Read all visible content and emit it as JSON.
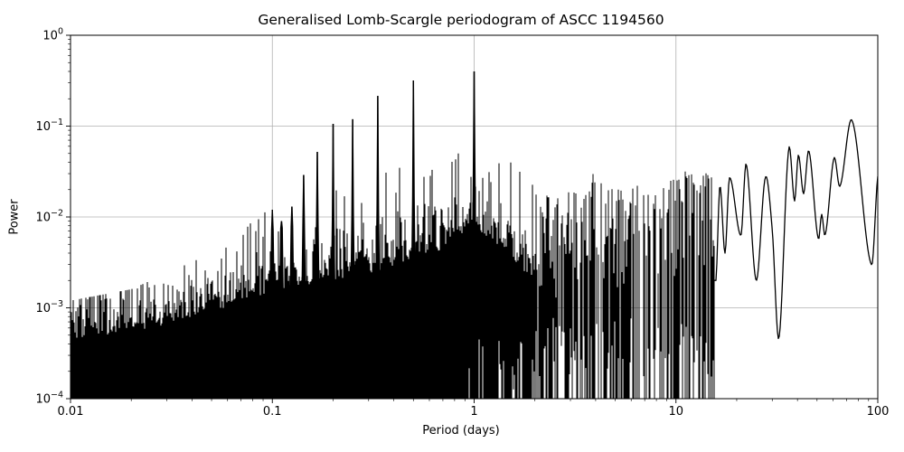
{
  "chart_data": {
    "type": "line",
    "title": "Generalised Lomb-Scargle periodogram of ASCC 1194560",
    "xlabel": "Period (days)",
    "ylabel": "Power",
    "xscale": "log",
    "yscale": "log",
    "xlim": [
      0.01,
      100
    ],
    "ylim": [
      0.0001,
      1
    ],
    "x_tick_labels": [
      "0.01",
      "0.1",
      "1",
      "10",
      "100"
    ],
    "x_tick_values": [
      0.01,
      0.1,
      1,
      10,
      100
    ],
    "y_tick_exponents": [
      0,
      -1,
      -2,
      -3,
      -4
    ],
    "grid": true,
    "legend": "none",
    "line_color": "#000000",
    "grid_color": "#b0b0b0",
    "background": "#ffffff",
    "peaks": [
      {
        "period": 0.1,
        "power": 0.012
      },
      {
        "period": 0.111,
        "power": 0.009
      },
      {
        "period": 0.125,
        "power": 0.013
      },
      {
        "period": 0.143,
        "power": 0.029
      },
      {
        "period": 0.167,
        "power": 0.052
      },
      {
        "period": 0.2,
        "power": 0.106
      },
      {
        "period": 0.25,
        "power": 0.119
      },
      {
        "period": 0.333,
        "power": 0.215
      },
      {
        "period": 0.5,
        "power": 0.318
      },
      {
        "period": 1.0,
        "power": 0.4
      }
    ],
    "noise_floor": [
      [
        0.01,
        0.00035
      ],
      [
        0.03,
        0.0005
      ],
      [
        0.06,
        0.0008
      ],
      [
        0.1,
        0.0012
      ],
      [
        0.2,
        0.0016
      ],
      [
        0.33,
        0.002
      ],
      [
        0.5,
        0.0028
      ],
      [
        0.7,
        0.0035
      ],
      [
        1.0,
        0.006
      ],
      [
        1.3,
        0.004
      ],
      [
        1.6,
        0.0025
      ],
      [
        2.0,
        0.0015
      ]
    ],
    "noise_spike_ceiling": [
      [
        0.01,
        0.0012
      ],
      [
        0.02,
        0.0016
      ],
      [
        0.05,
        0.004
      ],
      [
        0.1,
        0.013
      ],
      [
        0.15,
        0.02
      ],
      [
        0.3,
        0.04
      ],
      [
        0.5,
        0.05
      ],
      [
        1.0,
        0.05
      ],
      [
        2.0,
        0.035
      ]
    ],
    "spike_envelope": [
      [
        2.0,
        0.022
      ],
      [
        2.5,
        0.015
      ],
      [
        3.0,
        0.022
      ],
      [
        4.0,
        0.025
      ],
      [
        5.0,
        0.02
      ],
      [
        6.0,
        0.022
      ],
      [
        7.0,
        0.024
      ],
      [
        8.0,
        0.026
      ],
      [
        10.0,
        0.025
      ],
      [
        12.0,
        0.03
      ],
      [
        14.0,
        0.032
      ],
      [
        15.5,
        0.035
      ]
    ],
    "spike_density": [
      [
        2.0,
        0.9
      ],
      [
        3.5,
        0.85
      ],
      [
        5.0,
        0.7
      ],
      [
        6.5,
        0.5
      ],
      [
        8.0,
        0.45
      ],
      [
        9.0,
        0.6
      ],
      [
        10.0,
        0.8
      ],
      [
        15.5,
        0.85
      ]
    ],
    "smooth_tail": [
      [
        15.8,
        0.002
      ],
      [
        16.5,
        0.022
      ],
      [
        17.5,
        0.004
      ],
      [
        18.4,
        0.027
      ],
      [
        21,
        0.0063
      ],
      [
        22.3,
        0.038
      ],
      [
        25,
        0.002
      ],
      [
        27.7,
        0.027
      ],
      [
        30,
        0.0072
      ],
      [
        32.4,
        0.00047
      ],
      [
        36.1,
        0.053
      ],
      [
        38.7,
        0.015
      ],
      [
        40.4,
        0.048
      ],
      [
        42.9,
        0.018
      ],
      [
        45.6,
        0.053
      ],
      [
        50.6,
        0.0059
      ],
      [
        52.7,
        0.0107
      ],
      [
        55,
        0.0065
      ],
      [
        60.6,
        0.044
      ],
      [
        65,
        0.022
      ],
      [
        74.8,
        0.113
      ],
      [
        93,
        0.003
      ],
      [
        100,
        0.028
      ]
    ]
  }
}
